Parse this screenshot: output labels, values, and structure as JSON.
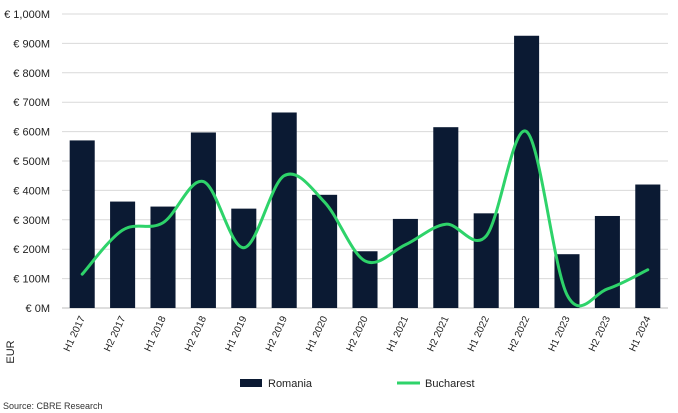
{
  "chart_data": {
    "type": "bar",
    "categories": [
      "H1 2017",
      "H2 2017",
      "H1 2018",
      "H2 2018",
      "H1 2019",
      "H2 2019",
      "H1 2020",
      "H2 2020",
      "H1 2021",
      "H2 2021",
      "H1 2022",
      "H2 2022",
      "H1 2023",
      "H2 2023",
      "H1 2024"
    ],
    "series": [
      {
        "name": "Romania",
        "type": "bar",
        "color": "#0b1a33",
        "values": [
          570,
          362,
          345,
          597,
          338,
          665,
          385,
          193,
          303,
          615,
          322,
          926,
          183,
          313,
          420
        ]
      },
      {
        "name": "Bucharest",
        "type": "line",
        "color": "#2ed36a",
        "values": [
          115,
          265,
          290,
          430,
          205,
          450,
          360,
          160,
          215,
          285,
          245,
          600,
          45,
          65,
          130
        ]
      }
    ],
    "yticks": [
      "€ 0M",
      "€ 100M",
      "€ 200M",
      "€ 300M",
      "€ 400M",
      "€ 500M",
      "€ 600M",
      "€ 700M",
      "€ 800M",
      "€ 900M",
      "€ 1,000M"
    ],
    "ylim": [
      0,
      1000
    ],
    "ylabel": "EUR",
    "grid": true,
    "legend_position": "bottom",
    "source": "Source: CBRE Research"
  }
}
